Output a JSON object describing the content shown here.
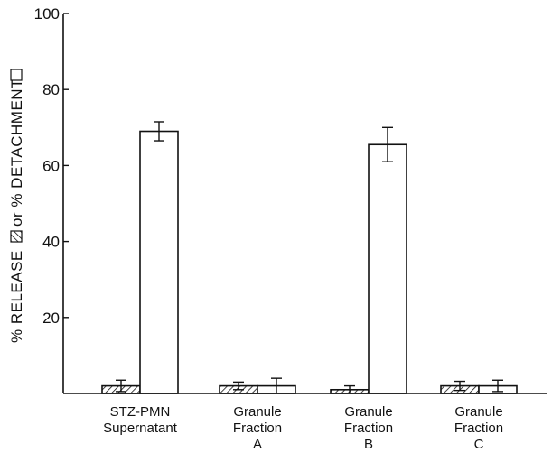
{
  "chart_data": {
    "type": "bar",
    "title": "",
    "xlabel": "",
    "ylabel": {
      "part1": "% RELEASE",
      "part2": "or % DETACHMENT"
    },
    "ylim": [
      0,
      100
    ],
    "yticks": [
      "20",
      "40",
      "60",
      "80",
      "100"
    ],
    "grid": false,
    "categories": [
      {
        "lines": [
          "STZ-PMN",
          "Supernatant"
        ]
      },
      {
        "lines": [
          "Granule",
          "Fraction",
          "A"
        ]
      },
      {
        "lines": [
          "Granule",
          "Fraction",
          "B"
        ]
      },
      {
        "lines": [
          "Granule",
          "Fraction",
          "C"
        ]
      }
    ],
    "series": [
      {
        "key": "release",
        "pattern": "hatched",
        "values": [
          2,
          2,
          1,
          2
        ],
        "errors": [
          1.5,
          1,
          1,
          1.2
        ]
      },
      {
        "key": "detachment",
        "pattern": "open",
        "values": [
          69,
          2,
          65.5,
          2
        ],
        "errors": [
          2.5,
          2,
          4.5,
          1.5
        ]
      }
    ]
  }
}
